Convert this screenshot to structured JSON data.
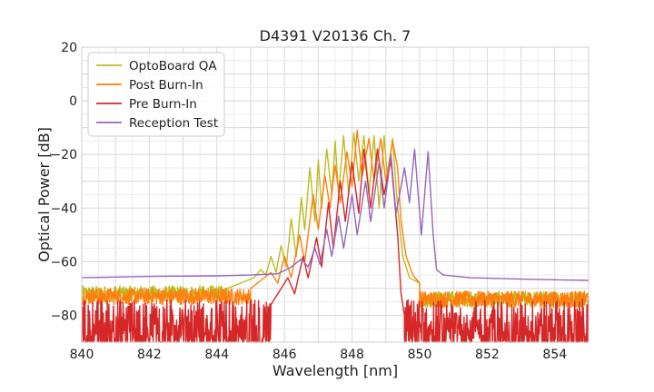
{
  "chart_data": {
    "type": "line",
    "title": "D4391 V20136 Ch. 7",
    "xlabel": "Wavelength [nm]",
    "ylabel": "Optical Power [dB]",
    "xlim": [
      840,
      855
    ],
    "ylim": [
      -90,
      20
    ],
    "grid": true,
    "legend_position": "top-left",
    "x_ticks": [
      840,
      842,
      844,
      846,
      848,
      850,
      852,
      854
    ],
    "x_tick_labels": [
      "840",
      "842",
      "844",
      "846",
      "848",
      "850",
      "852",
      "854"
    ],
    "y_ticks": [
      -80,
      -60,
      -40,
      -20,
      0,
      20
    ],
    "y_tick_labels": [
      "−80",
      "−60",
      "−40",
      "−20",
      "0",
      "20"
    ],
    "series": [
      {
        "name": "OptoBoard QA",
        "color": "#bcbd22",
        "noise": {
          "from": 840,
          "to": 844.3,
          "level": -72,
          "amplitude": 3
        },
        "points": [
          [
            844.3,
            -70
          ],
          [
            844.6,
            -68.5
          ],
          [
            844.9,
            -67
          ],
          [
            845.1,
            -66
          ],
          [
            845.3,
            -63
          ],
          [
            845.45,
            -65
          ],
          [
            845.6,
            -58
          ],
          [
            845.75,
            -64
          ],
          [
            845.9,
            -54
          ],
          [
            846.05,
            -62
          ],
          [
            846.2,
            -44
          ],
          [
            846.35,
            -58
          ],
          [
            846.5,
            -36
          ],
          [
            846.6,
            -48
          ],
          [
            846.75,
            -25
          ],
          [
            846.9,
            -45
          ],
          [
            847.0,
            -22
          ],
          [
            847.1,
            -40
          ],
          [
            847.25,
            -18
          ],
          [
            847.4,
            -35
          ],
          [
            847.5,
            -15
          ],
          [
            847.6,
            -35
          ],
          [
            847.75,
            -13
          ],
          [
            847.9,
            -35
          ],
          [
            848.05,
            -12
          ],
          [
            848.2,
            -30
          ],
          [
            848.35,
            -13
          ],
          [
            848.5,
            -35
          ],
          [
            848.65,
            -13
          ],
          [
            848.8,
            -40
          ],
          [
            848.95,
            -13
          ],
          [
            849.05,
            -30
          ],
          [
            849.2,
            -14
          ],
          [
            849.35,
            -40
          ],
          [
            849.5,
            -58
          ],
          [
            849.7,
            -66
          ],
          [
            850.0,
            -68
          ]
        ],
        "noise_after": {
          "from": 850.0,
          "to": 855,
          "level": -74,
          "amplitude": 3
        }
      },
      {
        "name": "Post Burn-In",
        "color": "#ff7f0e",
        "noise": {
          "from": 840,
          "to": 845.0,
          "level": -73,
          "amplitude": 3
        },
        "points": [
          [
            845.0,
            -70
          ],
          [
            845.3,
            -67
          ],
          [
            845.6,
            -64
          ],
          [
            845.8,
            -68
          ],
          [
            846.0,
            -58
          ],
          [
            846.2,
            -66
          ],
          [
            846.45,
            -50
          ],
          [
            846.6,
            -60
          ],
          [
            846.85,
            -35
          ],
          [
            847.0,
            -48
          ],
          [
            847.2,
            -28
          ],
          [
            847.35,
            -40
          ],
          [
            847.5,
            -24
          ],
          [
            847.65,
            -38
          ],
          [
            847.85,
            -19
          ],
          [
            848.0,
            -32
          ],
          [
            848.15,
            -11
          ],
          [
            848.3,
            -28
          ],
          [
            848.5,
            -14
          ],
          [
            848.65,
            -30
          ],
          [
            848.85,
            -14
          ],
          [
            849.0,
            -30
          ],
          [
            849.2,
            -15
          ],
          [
            849.35,
            -25
          ],
          [
            849.45,
            -45
          ],
          [
            849.6,
            -58
          ],
          [
            849.8,
            -65
          ],
          [
            850.0,
            -68
          ]
        ],
        "noise_after": {
          "from": 850.0,
          "to": 855,
          "level": -74,
          "amplitude": 3
        }
      },
      {
        "name": "Pre Burn-In",
        "color": "#d62728",
        "noise": {
          "from": 840,
          "to": 845.6,
          "level": -82,
          "amplitude": 8
        },
        "points": [
          [
            845.6,
            -76
          ],
          [
            845.9,
            -70
          ],
          [
            846.1,
            -66
          ],
          [
            846.3,
            -72
          ],
          [
            846.55,
            -58
          ],
          [
            846.7,
            -66
          ],
          [
            846.95,
            -51
          ],
          [
            847.1,
            -62
          ],
          [
            847.3,
            -38
          ],
          [
            847.45,
            -55
          ],
          [
            847.65,
            -30
          ],
          [
            847.8,
            -45
          ],
          [
            848.0,
            -23
          ],
          [
            848.2,
            -42
          ],
          [
            848.35,
            -18
          ],
          [
            848.55,
            -40
          ],
          [
            848.75,
            -18
          ],
          [
            848.95,
            -35
          ],
          [
            849.15,
            -22
          ],
          [
            849.35,
            -50
          ],
          [
            849.45,
            -72
          ],
          [
            849.55,
            -80
          ]
        ],
        "noise_after": {
          "from": 849.55,
          "to": 855,
          "level": -82,
          "amplitude": 8
        }
      },
      {
        "name": "Reception Test",
        "color": "#9467bd",
        "points": [
          [
            840.0,
            -66
          ],
          [
            842.0,
            -65.5
          ],
          [
            844.0,
            -65.3
          ],
          [
            845.0,
            -65
          ],
          [
            845.8,
            -64.5
          ],
          [
            846.2,
            -62
          ],
          [
            846.5,
            -59
          ],
          [
            846.7,
            -62
          ],
          [
            846.9,
            -55
          ],
          [
            847.05,
            -61
          ],
          [
            847.25,
            -48
          ],
          [
            847.4,
            -58
          ],
          [
            847.6,
            -43
          ],
          [
            847.75,
            -55
          ],
          [
            848.0,
            -35
          ],
          [
            848.15,
            -50
          ],
          [
            848.4,
            -30
          ],
          [
            848.55,
            -45
          ],
          [
            848.8,
            -23
          ],
          [
            848.95,
            -40
          ],
          [
            849.15,
            -20
          ],
          [
            849.3,
            -42
          ],
          [
            849.55,
            -25
          ],
          [
            849.7,
            -38
          ],
          [
            849.85,
            -18
          ],
          [
            850.05,
            -50
          ],
          [
            850.25,
            -19
          ],
          [
            850.4,
            -50
          ],
          [
            850.5,
            -63
          ],
          [
            850.7,
            -65
          ],
          [
            851.5,
            -66
          ],
          [
            853.0,
            -66.5
          ],
          [
            855.0,
            -67
          ]
        ]
      }
    ]
  }
}
